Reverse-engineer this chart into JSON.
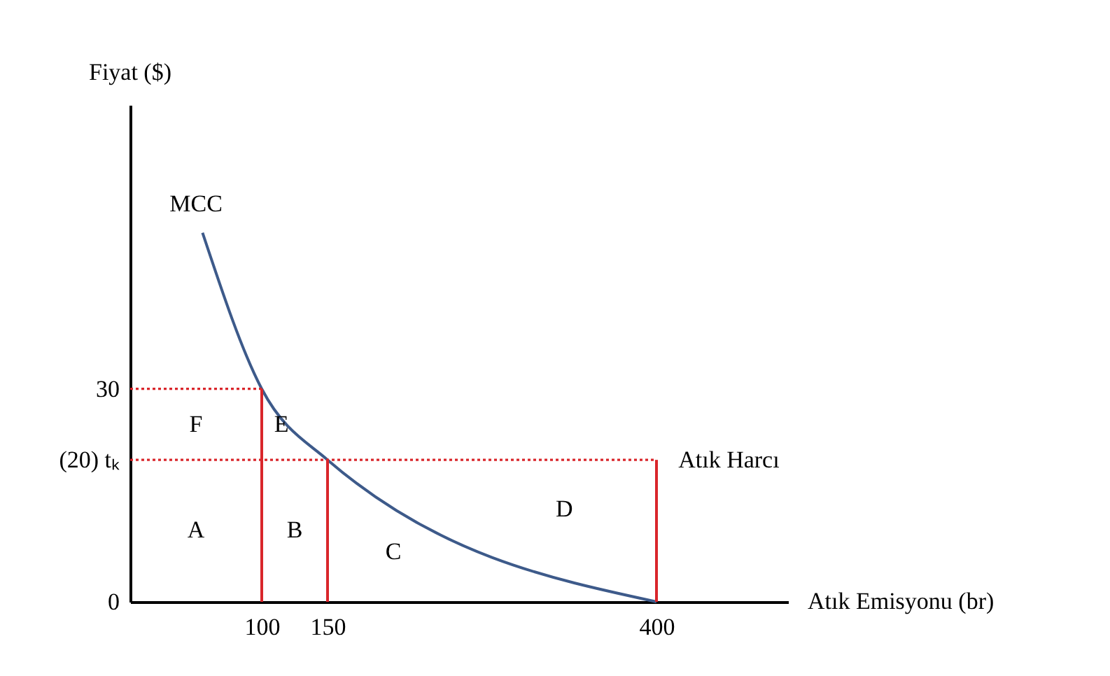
{
  "chart_data": {
    "type": "line",
    "xlabel": "Atık Emisyonu (br)",
    "ylabel": "Fiyat ($)",
    "xlim": [
      0,
      500
    ],
    "ylim": [
      0,
      70
    ],
    "xticks": [
      100,
      150,
      400
    ],
    "yticks": [
      0,
      {
        "value": 20,
        "label": "(20) tₖ"
      },
      30
    ],
    "grid": false,
    "marker": "none",
    "series": [
      {
        "color": "#3d5a8a",
        "line_style": "solid",
        "x": [
          55,
          100,
          150,
          400
        ],
        "values": [
          52,
          30,
          20,
          0
        ]
      },
      {
        "color": "#d9262b",
        "line_style": "dotted",
        "x": [
          0,
          100
        ],
        "values": [
          30,
          30
        ]
      },
      {
        "color": "#d9262b",
        "line_style": "dotted",
        "x": [
          0,
          400
        ],
        "values": [
          20,
          20
        ]
      },
      {
        "color": "#d9262b",
        "line_style": "solid",
        "x": [
          100,
          100
        ],
        "values": [
          0,
          30
        ]
      },
      {
        "color": "#d9262b",
        "line_style": "solid",
        "x": [
          150,
          150
        ],
        "values": [
          0,
          20
        ]
      },
      {
        "color": "#d9262b",
        "line_style": "solid",
        "x": [
          400,
          400
        ],
        "values": [
          0,
          20
        ]
      }
    ],
    "annotations": [
      "MCC",
      "Atık Harcı",
      "F",
      "E",
      "A",
      "B",
      "C",
      "D"
    ]
  }
}
